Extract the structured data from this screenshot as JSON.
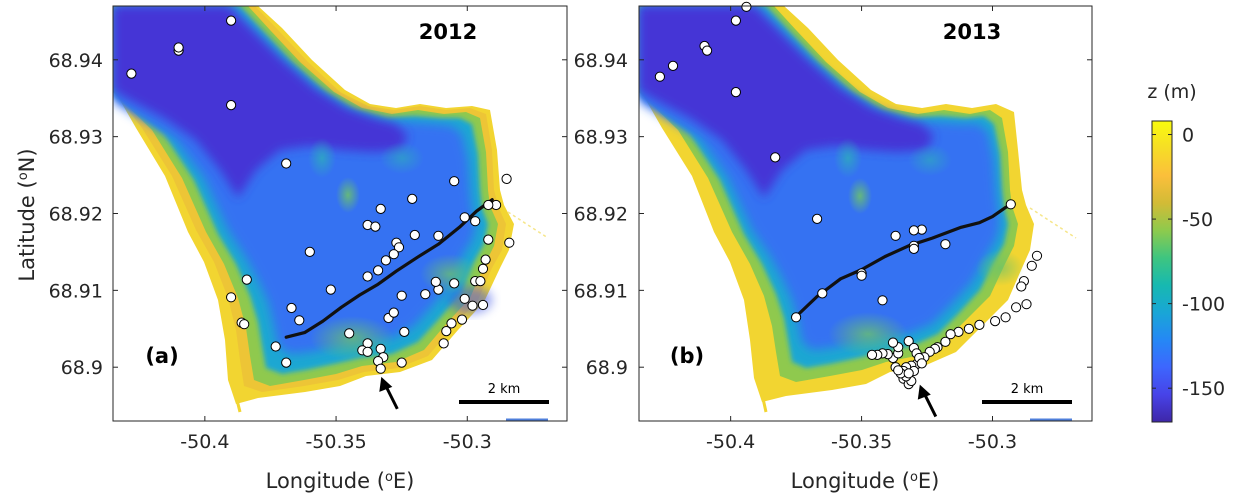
{
  "figure": {
    "ylabel_prefix": "Latitude (",
    "ylabel_sup": "o",
    "ylabel_suffix": "N)",
    "xlabel_prefix": "Longitude (",
    "xlabel_sup": "o",
    "xlabel_suffix": "E)",
    "colorbar_label": "z (m)",
    "colorbar_ticks": [
      "0",
      "-50",
      "-100",
      "-150"
    ],
    "scale_bar_label": "2 km",
    "colormap": [
      "#3e26a8",
      "#4743e8",
      "#3d66fe",
      "#2588f5",
      "#19a6d6",
      "#17b9b0",
      "#3ec580",
      "#8dca4d",
      "#d2bb36",
      "#fbbf3b",
      "#f6dd26",
      "#f9fb0e"
    ],
    "land_color": "#ffffff"
  },
  "chart_data": [
    {
      "type": "scatter",
      "title": "2012",
      "panel_label": "(a)",
      "xlabel": "Longitude (oE)",
      "ylabel": "Latitude (oN)",
      "xlim": [
        -50.435,
        -50.262
      ],
      "ylim": [
        68.893,
        68.947
      ],
      "x_ticks": [
        "-50.4",
        "-50.35",
        "-50.3"
      ],
      "x_tick_values": [
        -50.4,
        -50.35,
        -50.3
      ],
      "y_ticks": [
        "68.9",
        "68.91",
        "68.92",
        "68.93",
        "68.94"
      ],
      "y_tick_values": [
        68.9,
        68.91,
        68.92,
        68.93,
        68.94
      ],
      "grid": false,
      "arrow_at": [
        -50.332,
        68.899
      ],
      "scale_bar_km": 2,
      "front_line": [
        [
          -50.369,
          68.9039
        ],
        [
          -50.362,
          68.9045
        ],
        [
          -50.355,
          68.906
        ],
        [
          -50.348,
          68.9078
        ],
        [
          -50.341,
          68.9094
        ],
        [
          -50.334,
          68.9108
        ],
        [
          -50.327,
          68.9125
        ],
        [
          -50.319,
          68.9143
        ],
        [
          -50.311,
          68.916
        ],
        [
          -50.303,
          68.9182
        ],
        [
          -50.2965,
          68.9203
        ],
        [
          -50.2905,
          68.9218
        ]
      ],
      "points": [
        [
          -50.428,
          68.9382
        ],
        [
          -50.41,
          68.9412
        ],
        [
          -50.41,
          68.9416
        ],
        [
          -50.39,
          68.9451
        ],
        [
          -50.39,
          68.9341
        ],
        [
          -50.369,
          68.9265
        ],
        [
          -50.333,
          68.9206
        ],
        [
          -50.338,
          68.9185
        ],
        [
          -50.335,
          68.9183
        ],
        [
          -50.321,
          68.9219
        ],
        [
          -50.305,
          68.9242
        ],
        [
          -50.285,
          68.9245
        ],
        [
          -50.289,
          68.9211
        ],
        [
          -50.292,
          68.9211
        ],
        [
          -50.301,
          68.9195
        ],
        [
          -50.297,
          68.919
        ],
        [
          -50.311,
          68.9171
        ],
        [
          -50.32,
          68.9172
        ],
        [
          -50.327,
          68.9162
        ],
        [
          -50.326,
          68.9156
        ],
        [
          -50.328,
          68.9147
        ],
        [
          -50.331,
          68.9139
        ],
        [
          -50.334,
          68.9126
        ],
        [
          -50.338,
          68.9118
        ],
        [
          -50.36,
          68.915
        ],
        [
          -50.384,
          68.9114
        ],
        [
          -50.39,
          68.9091
        ],
        [
          -50.352,
          68.9101
        ],
        [
          -50.367,
          68.9077
        ],
        [
          -50.364,
          68.9061
        ],
        [
          -50.386,
          68.9058
        ],
        [
          -50.385,
          68.9056
        ],
        [
          -50.373,
          68.9027
        ],
        [
          -50.369,
          68.9006
        ],
        [
          -50.345,
          68.9044
        ],
        [
          -50.338,
          68.9031
        ],
        [
          -50.34,
          68.9022
        ],
        [
          -50.338,
          68.902
        ],
        [
          -50.333,
          68.9024
        ],
        [
          -50.332,
          68.9013
        ],
        [
          -50.334,
          68.9008
        ],
        [
          -50.333,
          68.8998
        ],
        [
          -50.325,
          68.9006
        ],
        [
          -50.324,
          68.9046
        ],
        [
          -50.33,
          68.9064
        ],
        [
          -50.328,
          68.9071
        ],
        [
          -50.325,
          68.9093
        ],
        [
          -50.316,
          68.9095
        ],
        [
          -50.311,
          68.9101
        ],
        [
          -50.312,
          68.9111
        ],
        [
          -50.305,
          68.9109
        ],
        [
          -50.297,
          68.9112
        ],
        [
          -50.295,
          68.9112
        ],
        [
          -50.294,
          68.9128
        ],
        [
          -50.293,
          68.914
        ],
        [
          -50.292,
          68.9166
        ],
        [
          -50.284,
          68.9162
        ],
        [
          -50.301,
          68.9089
        ],
        [
          -50.298,
          68.908
        ],
        [
          -50.294,
          68.9081
        ],
        [
          -50.302,
          68.9062
        ],
        [
          -50.306,
          68.9057
        ],
        [
          -50.308,
          68.9047
        ],
        [
          -50.309,
          68.9031
        ]
      ]
    },
    {
      "type": "scatter",
      "title": "2013",
      "panel_label": "(b)",
      "xlabel": "Longitude (oE)",
      "ylabel": "Latitude (oN)",
      "xlim": [
        -50.435,
        -50.262
      ],
      "ylim": [
        68.893,
        68.947
      ],
      "x_ticks": [
        "-50.4",
        "-50.35",
        "-50.3"
      ],
      "x_tick_values": [
        -50.4,
        -50.35,
        -50.3
      ],
      "y_ticks": [
        "68.9",
        "68.91",
        "68.92",
        "68.93",
        "68.94"
      ],
      "y_tick_values": [
        68.9,
        68.91,
        68.92,
        68.93,
        68.94
      ],
      "grid": false,
      "arrow_at": [
        -50.327,
        68.898
      ],
      "scale_bar_km": 2,
      "front_line": [
        [
          -50.375,
          68.9066
        ],
        [
          -50.367,
          68.9092
        ],
        [
          -50.358,
          68.9115
        ],
        [
          -50.35,
          68.9127
        ],
        [
          -50.341,
          68.9144
        ],
        [
          -50.332,
          68.9158
        ],
        [
          -50.323,
          68.9168
        ],
        [
          -50.312,
          68.9182
        ],
        [
          -50.305,
          68.9188
        ],
        [
          -50.3,
          68.9196
        ],
        [
          -50.295,
          68.9208
        ],
        [
          -50.2925,
          68.9212
        ]
      ],
      "points": [
        [
          -50.427,
          68.9378
        ],
        [
          -50.422,
          68.9392
        ],
        [
          -50.41,
          68.9418
        ],
        [
          -50.409,
          68.9412
        ],
        [
          -50.398,
          68.9451
        ],
        [
          -50.398,
          68.9358
        ],
        [
          -50.394,
          68.9469
        ],
        [
          -50.383,
          68.9273
        ],
        [
          -50.367,
          68.9193
        ],
        [
          -50.337,
          68.9171
        ],
        [
          -50.327,
          68.9179
        ],
        [
          -50.33,
          68.9178
        ],
        [
          -50.33,
          68.9158
        ],
        [
          -50.33,
          68.9154
        ],
        [
          -50.318,
          68.916
        ],
        [
          -50.293,
          68.9212
        ],
        [
          -50.35,
          68.9122
        ],
        [
          -50.35,
          68.9119
        ],
        [
          -50.365,
          68.9096
        ],
        [
          -50.342,
          68.9087
        ],
        [
          -50.375,
          68.9065
        ],
        [
          -50.283,
          68.9145
        ],
        [
          -50.285,
          68.9132
        ],
        [
          -50.288,
          68.9112
        ],
        [
          -50.289,
          68.9105
        ],
        [
          -50.287,
          68.9082
        ],
        [
          -50.291,
          68.9078
        ],
        [
          -50.295,
          68.9065
        ],
        [
          -50.299,
          68.906
        ],
        [
          -50.305,
          68.9055
        ],
        [
          -50.309,
          68.905
        ],
        [
          -50.313,
          68.9046
        ],
        [
          -50.316,
          68.9043
        ],
        [
          -50.318,
          68.9033
        ],
        [
          -50.321,
          68.9026
        ],
        [
          -50.322,
          68.9024
        ],
        [
          -50.324,
          68.902
        ],
        [
          -50.326,
          68.9013
        ],
        [
          -50.328,
          68.9008
        ],
        [
          -50.329,
          68.9004
        ],
        [
          -50.331,
          68.9002
        ],
        [
          -50.333,
          68.9
        ],
        [
          -50.334,
          68.8995
        ],
        [
          -50.334,
          68.8985
        ],
        [
          -50.332,
          68.8978
        ],
        [
          -50.331,
          68.8982
        ],
        [
          -50.333,
          68.8988
        ],
        [
          -50.335,
          68.8992
        ],
        [
          -50.337,
          68.9
        ],
        [
          -50.338,
          68.9012
        ],
        [
          -50.34,
          68.9017
        ],
        [
          -50.342,
          68.9018
        ],
        [
          -50.344,
          68.9016
        ],
        [
          -50.346,
          68.9016
        ],
        [
          -50.336,
          68.9018
        ],
        [
          -50.336,
          68.9026
        ],
        [
          -50.338,
          68.9032
        ],
        [
          -50.332,
          68.9034
        ],
        [
          -50.33,
          68.9025
        ],
        [
          -50.329,
          68.9018
        ],
        [
          -50.328,
          68.9012
        ],
        [
          -50.327,
          68.9005
        ],
        [
          -50.336,
          68.8996
        ],
        [
          -50.33,
          68.8995
        ],
        [
          -50.332,
          68.8992
        ]
      ]
    }
  ]
}
